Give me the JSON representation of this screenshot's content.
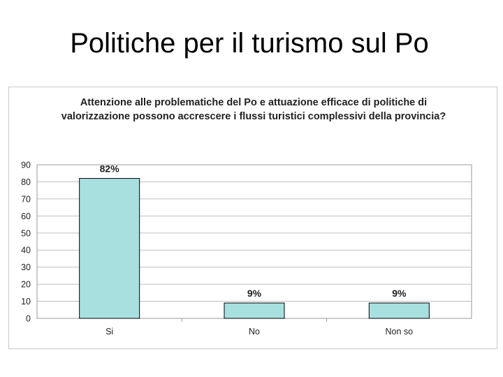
{
  "slide": {
    "title": "Politiche per il turismo sul Po"
  },
  "chart_data": {
    "type": "bar",
    "title": "Attenzione alle problematiche del Po e attuazione efficace di politiche di valorizzazione possono accrescere i flussi turistici complessivi della provincia?",
    "categories": [
      "Si",
      "No",
      "Non so"
    ],
    "values": [
      82,
      9,
      9
    ],
    "data_labels": [
      "82%",
      "9%",
      "9%"
    ],
    "ylim": [
      0,
      90
    ],
    "yticks": [
      0,
      10,
      20,
      30,
      40,
      50,
      60,
      70,
      80,
      90
    ],
    "grid": true,
    "xlabel": "",
    "ylabel": "",
    "colors": {
      "bar_fill": "#a8e0e0",
      "bar_stroke": "#000000",
      "grid": "#c0c0c0",
      "axis": "#999999",
      "text": "#222222"
    }
  }
}
